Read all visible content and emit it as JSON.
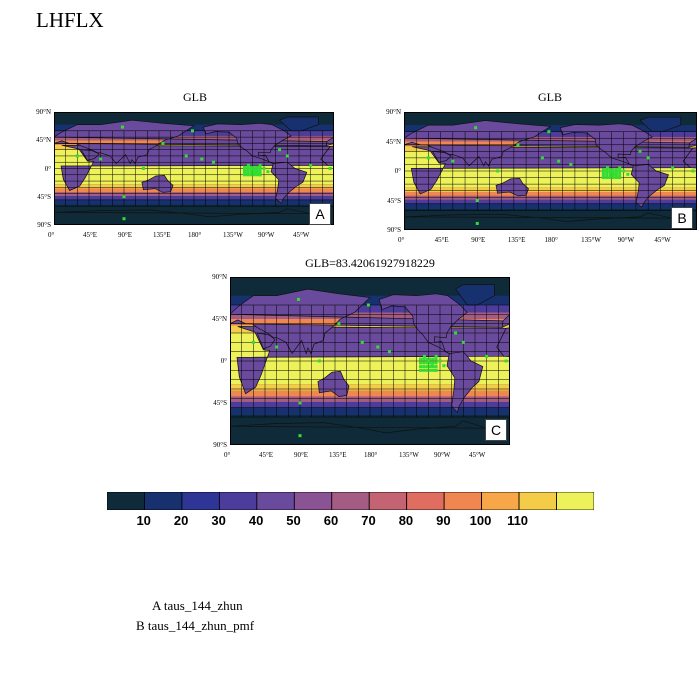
{
  "figure": {
    "title": "LHFLX"
  },
  "chart_data": [
    {
      "type": "heatmap",
      "panel_letter": "A",
      "title": "GLB",
      "lat_ticks": [
        "90°N",
        "45°N",
        "0°",
        "45°S",
        "90°S"
      ],
      "lon_ticks": [
        "0°",
        "45°E",
        "90°E",
        "135°E",
        "180°",
        "135°W",
        "90°W",
        "45°W"
      ],
      "xlim": [
        0,
        360
      ],
      "ylim": [
        -90,
        90
      ],
      "grid": true
    },
    {
      "type": "heatmap",
      "panel_letter": "B",
      "title": "GLB",
      "lat_ticks": [
        "90°N",
        "45°N",
        "0°",
        "45°S",
        "90°S"
      ],
      "lon_ticks": [
        "0°",
        "45°E",
        "90°E",
        "135°E",
        "180°",
        "135°W",
        "90°W",
        "45°W"
      ],
      "xlim": [
        0,
        360
      ],
      "ylim": [
        -90,
        90
      ],
      "grid": true
    },
    {
      "type": "heatmap",
      "panel_letter": "C",
      "title": "GLB=83.42061927918229",
      "lat_ticks": [
        "90°N",
        "45°N",
        "0°",
        "45°S",
        "90°S"
      ],
      "lon_ticks": [
        "0°",
        "45°E",
        "90°E",
        "135°E",
        "180°",
        "135°W",
        "90°W",
        "45°W"
      ],
      "xlim": [
        0,
        360
      ],
      "ylim": [
        -90,
        90
      ],
      "grid": true
    }
  ],
  "colorbar": {
    "labels": [
      "10",
      "20",
      "30",
      "40",
      "50",
      "60",
      "70",
      "80",
      "90",
      "100",
      "110"
    ],
    "colors": [
      "#0f2a38",
      "#17306e",
      "#2e3594",
      "#4c3d9c",
      "#6a4a9c",
      "#8a5494",
      "#a55c84",
      "#c46472",
      "#e06e60",
      "#f08650",
      "#f7a648",
      "#f4cc48",
      "#eef25a"
    ]
  },
  "legend": {
    "lines": [
      "A  taus_144_zhun",
      "B  taus_144_zhun_pmf"
    ]
  },
  "map_colors": {
    "grid": "#000000",
    "coast": "#111111",
    "marker": "#33dd33"
  }
}
